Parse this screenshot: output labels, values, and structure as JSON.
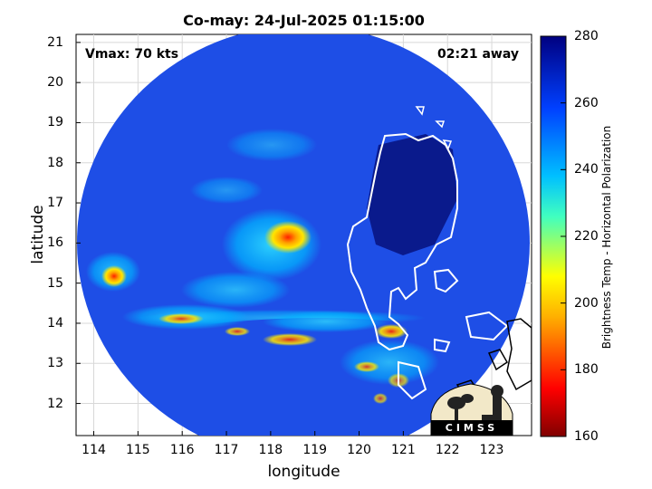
{
  "title": "Co-may: 24-Jul-2025 01:15:00",
  "vmax_text": "Vmax: 70 kts",
  "away_text": "02:21 away",
  "logo_text": "CIMSS",
  "colorbar": {
    "label": "Brightness Temp - Horizontal Polarization",
    "min": 160,
    "max": 280,
    "ticks": [
      "160",
      "180",
      "200",
      "220",
      "240",
      "260",
      "280"
    ]
  },
  "chart_data": {
    "type": "heatmap",
    "title": "Co-may: 24-Jul-2025 01:15:00",
    "xlabel": "longitude",
    "ylabel": "latitude",
    "xlim": [
      113.6,
      123.9
    ],
    "ylim": [
      11.2,
      21.2
    ],
    "xticks": [
      "114",
      "115",
      "116",
      "117",
      "118",
      "119",
      "120",
      "121",
      "122",
      "123"
    ],
    "yticks": [
      "12",
      "13",
      "14",
      "15",
      "16",
      "17",
      "18",
      "19",
      "20",
      "21"
    ],
    "grid": true,
    "storm_center": {
      "lon": 118.3,
      "lat": 16.1
    },
    "colors": {
      "cold": "#0a1a8c",
      "background": "#1e4ee6",
      "warm_low": "#00b4ff",
      "warm_mid": "#ffe600",
      "warm_high": "#e60000"
    }
  }
}
